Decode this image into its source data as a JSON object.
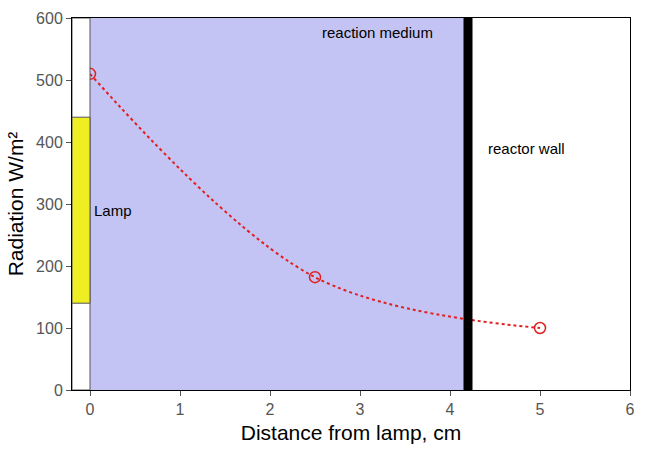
{
  "chart_data": {
    "type": "scatter",
    "x_label": "Distance from lamp, cm",
    "y_label": "Radiation W/m²",
    "x": [
      0,
      2.5,
      5
    ],
    "values": [
      510,
      182,
      100
    ],
    "color": "#e02020",
    "marker": "circle-open",
    "line_style": "dot",
    "xlim": [
      -0.2,
      6
    ],
    "ylim": [
      0,
      600
    ],
    "xticks": [
      0,
      1,
      2,
      3,
      4,
      5,
      6
    ],
    "yticks": [
      0,
      100,
      200,
      300,
      400,
      500,
      600
    ],
    "grid": false,
    "regions": {
      "medium": {
        "label": "reaction medium",
        "x": [
          0,
          4.2
        ],
        "color": "#c4c4f4"
      },
      "wall": {
        "label": "reactor wall",
        "x": 4.2,
        "color": "#000000"
      },
      "lamp": {
        "label": "Lamp",
        "y": [
          140,
          440
        ],
        "color": "#eeee22"
      }
    }
  }
}
